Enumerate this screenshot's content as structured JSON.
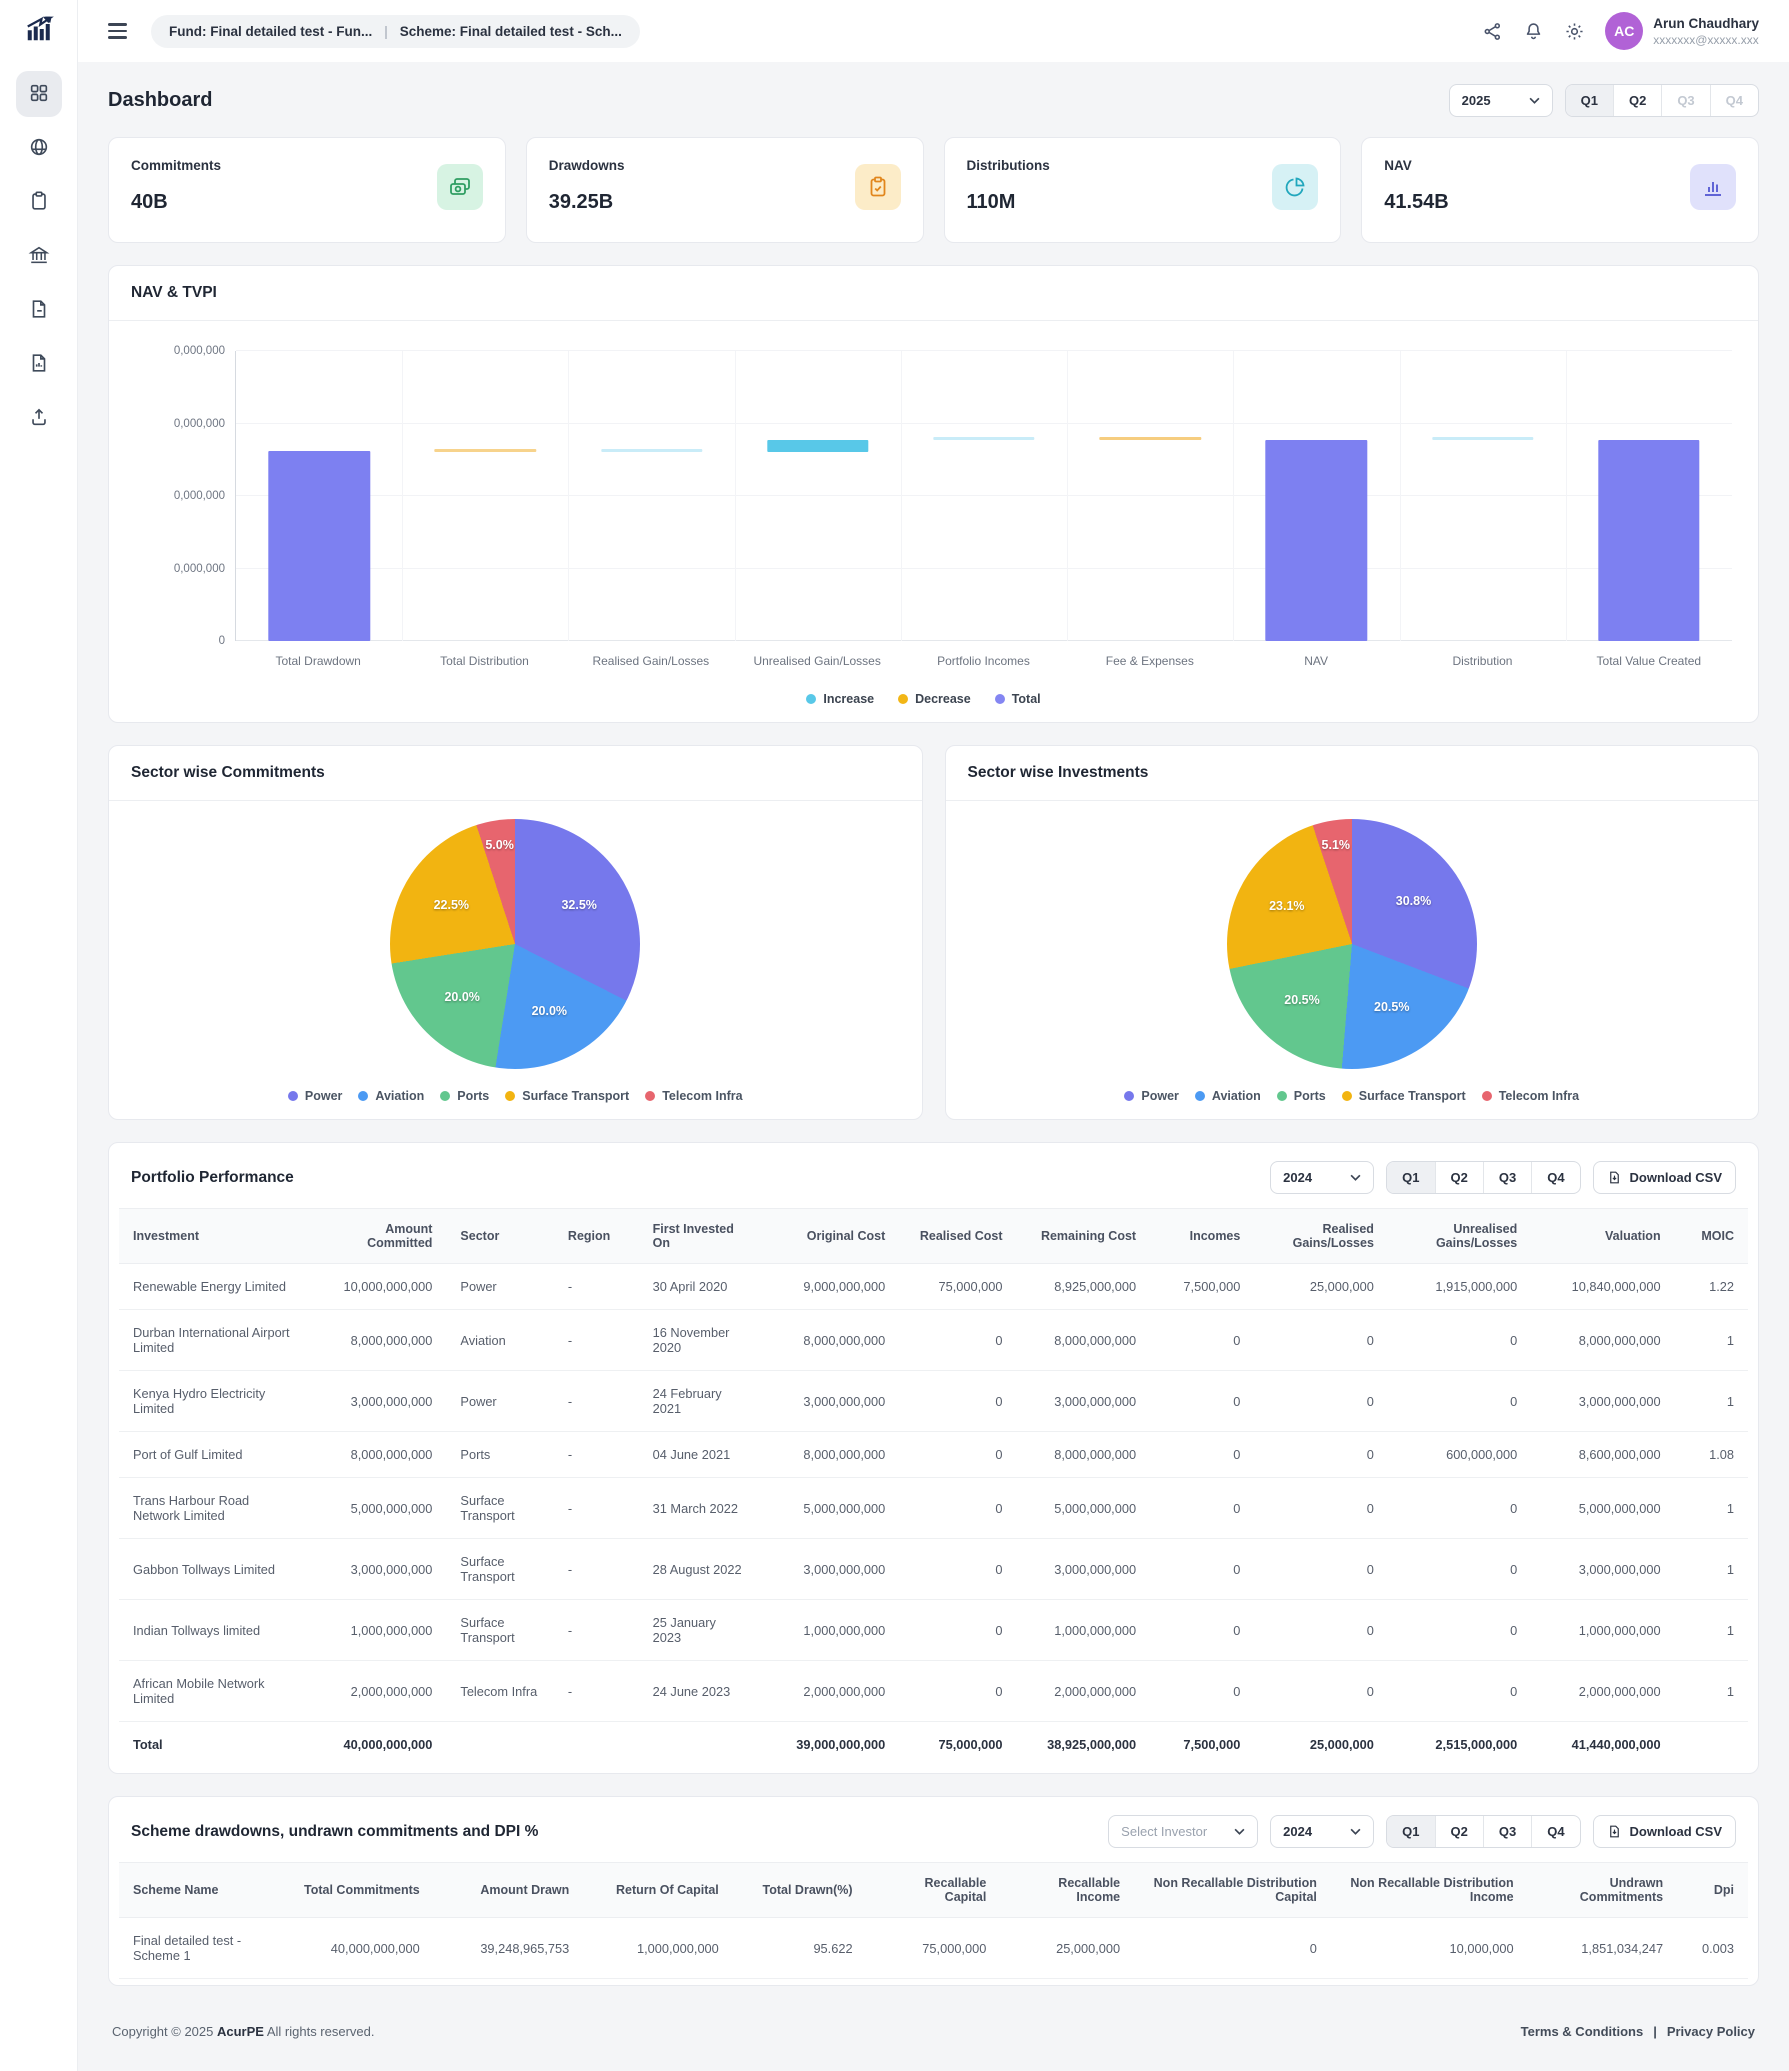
{
  "topbar": {
    "fund_label": "Fund: Final detailed test - Fun...",
    "separator": "|",
    "scheme_label": "Scheme: Final detailed test - Sch...",
    "user": {
      "initials": "AC",
      "name": "Arun Chaudhary",
      "email": "xxxxxxx@xxxxx.xxx"
    }
  },
  "page": {
    "title": "Dashboard",
    "year": "2025",
    "quarters": [
      "Q1",
      "Q2",
      "Q3",
      "Q4"
    ]
  },
  "kpis": [
    {
      "label": "Commitments",
      "value": "40B",
      "icon": "banknotes-icon",
      "icon_bg": "#d7f3e3",
      "icon_color": "#2f9e63"
    },
    {
      "label": "Drawdowns",
      "value": "39.25B",
      "icon": "clipboard-check-icon",
      "icon_bg": "#fcecc8",
      "icon_color": "#e1861c"
    },
    {
      "label": "Distributions",
      "value": "110M",
      "icon": "pie-icon",
      "icon_bg": "#d6f1f5",
      "icon_color": "#21a7bd"
    },
    {
      "label": "NAV",
      "value": "41.54B",
      "icon": "bar-chart-icon",
      "icon_bg": "#e0e1fb",
      "icon_color": "#5357d2"
    }
  ],
  "chart_data": [
    {
      "type": "bar",
      "subtype": "waterfall",
      "title": "NAV & TVPI",
      "categories": [
        "Total Drawdown",
        "Total Distribution",
        "Realised Gain/Losses",
        "Unrealised Gain/Losses",
        "Portfolio Incomes",
        "Fee & Expenses",
        "NAV",
        "Distribution",
        "Total Value Created"
      ],
      "bars": [
        {
          "label": "Total Drawdown",
          "kind": "total",
          "from": 0,
          "to": 39250000000,
          "color": "#7d80f1"
        },
        {
          "label": "Total Distribution",
          "kind": "decrease",
          "from": 39140000000,
          "to": 39250000000,
          "color": "#f7d38c"
        },
        {
          "label": "Realised Gain/Losses",
          "kind": "increase",
          "from": 39140000000,
          "to": 39165000000,
          "color": "#c9ecf8"
        },
        {
          "label": "Unrealised Gain/Losses",
          "kind": "increase",
          "from": 39165000000,
          "to": 41680000000,
          "color": "#58c8e8"
        },
        {
          "label": "Portfolio Incomes",
          "kind": "increase",
          "from": 41680000000,
          "to": 41687500000,
          "color": "#c9ecf8"
        },
        {
          "label": "Fee & Expenses",
          "kind": "decrease",
          "from": 41540000000,
          "to": 41687500000,
          "color": "#f6cd7f"
        },
        {
          "label": "NAV",
          "kind": "total",
          "from": 0,
          "to": 41540000000,
          "color": "#7d80f1"
        },
        {
          "label": "Distribution",
          "kind": "increase",
          "from": 41540000000,
          "to": 41650000000,
          "color": "#c9ecf8"
        },
        {
          "label": "Total Value Created",
          "kind": "total",
          "from": 0,
          "to": 41650000000,
          "color": "#7d80f1"
        }
      ],
      "ylim": [
        0,
        60000000000
      ],
      "ytick_labels": [
        "0",
        "0,000,000",
        "0,000,000",
        "0,000,000",
        "0,000,000"
      ],
      "grid": true,
      "legend_position": "bottom",
      "legend": [
        {
          "label": "Increase",
          "color": "#58c8e8"
        },
        {
          "label": "Decrease",
          "color": "#f2b616"
        },
        {
          "label": "Total",
          "color": "#8486f2"
        }
      ]
    },
    {
      "type": "pie",
      "title": "Sector wise Commitments",
      "labels": [
        "Power",
        "Aviation",
        "Ports",
        "Surface Transport",
        "Telecom Infra"
      ],
      "values": [
        32.5,
        20.0,
        20.0,
        22.5,
        5.0
      ],
      "value_labels": [
        "32.5%",
        "20.0%",
        "20.0%",
        "22.5%",
        "5.0%"
      ],
      "colors": [
        "#7678ec",
        "#4c9af3",
        "#62c78e",
        "#f2b411",
        "#e7656e"
      ],
      "legend_position": "bottom"
    },
    {
      "type": "pie",
      "title": "Sector wise Investments",
      "labels": [
        "Power",
        "Aviation",
        "Ports",
        "Surface Transport",
        "Telecom Infra"
      ],
      "values": [
        30.8,
        20.5,
        20.5,
        23.1,
        5.1
      ],
      "value_labels": [
        "30.8%",
        "20.5%",
        "20.5%",
        "23.1%",
        "5.1%"
      ],
      "colors": [
        "#7678ec",
        "#4c9af3",
        "#62c78e",
        "#f2b411",
        "#e7656e"
      ],
      "legend_position": "bottom"
    }
  ],
  "portfolio": {
    "title": "Portfolio Performance",
    "year": "2024",
    "quarters": [
      "Q1",
      "Q2",
      "Q3",
      "Q4"
    ],
    "download_label": "Download CSV",
    "columns": [
      "Investment",
      "Amount Committed",
      "Sector",
      "Region",
      "First Invested On",
      "Original Cost",
      "Realised Cost",
      "Remaining Cost",
      "Incomes",
      "Realised Gains/Losses",
      "Unrealised Gains/Losses",
      "Valuation",
      "MOIC"
    ],
    "rows": [
      [
        "Renewable Energy Limited",
        "10,000,000,000",
        "Power",
        "-",
        "30 April 2020",
        "9,000,000,000",
        "75,000,000",
        "8,925,000,000",
        "7,500,000",
        "25,000,000",
        "1,915,000,000",
        "10,840,000,000",
        "1.22"
      ],
      [
        "Durban International Airport Limited",
        "8,000,000,000",
        "Aviation",
        "-",
        "16 November 2020",
        "8,000,000,000",
        "0",
        "8,000,000,000",
        "0",
        "0",
        "0",
        "8,000,000,000",
        "1"
      ],
      [
        "Kenya Hydro Electricity Limited",
        "3,000,000,000",
        "Power",
        "-",
        "24 February 2021",
        "3,000,000,000",
        "0",
        "3,000,000,000",
        "0",
        "0",
        "0",
        "3,000,000,000",
        "1"
      ],
      [
        "Port of Gulf Limited",
        "8,000,000,000",
        "Ports",
        "-",
        "04 June 2021",
        "8,000,000,000",
        "0",
        "8,000,000,000",
        "0",
        "0",
        "600,000,000",
        "8,600,000,000",
        "1.08"
      ],
      [
        "Trans Harbour Road Network Limited",
        "5,000,000,000",
        "Surface Transport",
        "-",
        "31 March 2022",
        "5,000,000,000",
        "0",
        "5,000,000,000",
        "0",
        "0",
        "0",
        "5,000,000,000",
        "1"
      ],
      [
        "Gabbon Tollways Limited",
        "3,000,000,000",
        "Surface Transport",
        "-",
        "28 August 2022",
        "3,000,000,000",
        "0",
        "3,000,000,000",
        "0",
        "0",
        "0",
        "3,000,000,000",
        "1"
      ],
      [
        "Indian Tollways limited",
        "1,000,000,000",
        "Surface Transport",
        "-",
        "25 January 2023",
        "1,000,000,000",
        "0",
        "1,000,000,000",
        "0",
        "0",
        "0",
        "1,000,000,000",
        "1"
      ],
      [
        "African Mobile Network Limited",
        "2,000,000,000",
        "Telecom Infra",
        "-",
        "24 June 2023",
        "2,000,000,000",
        "0",
        "2,000,000,000",
        "0",
        "0",
        "0",
        "2,000,000,000",
        "1"
      ]
    ],
    "total_row": [
      "Total",
      "40,000,000,000",
      "",
      "",
      "",
      "39,000,000,000",
      "75,000,000",
      "38,925,000,000",
      "7,500,000",
      "25,000,000",
      "2,515,000,000",
      "41,440,000,000",
      ""
    ]
  },
  "scheme": {
    "title": "Scheme drawdowns, undrawn commitments and DPI %",
    "investor_placeholder": "Select Investor",
    "year": "2024",
    "quarters": [
      "Q1",
      "Q2",
      "Q3",
      "Q4"
    ],
    "download_label": "Download CSV",
    "columns": [
      "Scheme Name",
      "Total Commitments",
      "Amount Drawn",
      "Return Of Capital",
      "Total Drawn(%)",
      "Recallable Capital",
      "Recallable Income",
      "Non Recallable Distribution Capital",
      "Non Recallable Distribution Income",
      "Undrawn Commitments",
      "Dpi"
    ],
    "rows": [
      [
        "Final detailed test - Scheme 1",
        "40,000,000,000",
        "39,248,965,753",
        "1,000,000,000",
        "95.622",
        "75,000,000",
        "25,000,000",
        "0",
        "10,000,000",
        "1,851,034,247",
        "0.003"
      ]
    ]
  },
  "footer": {
    "copyright_prefix": "Copyright © 2025 ",
    "brand": "AcurPE",
    "copyright_suffix": " All rights reserved.",
    "links": [
      "Terms & Conditions",
      "Privacy Policy"
    ],
    "link_separator": "|"
  }
}
